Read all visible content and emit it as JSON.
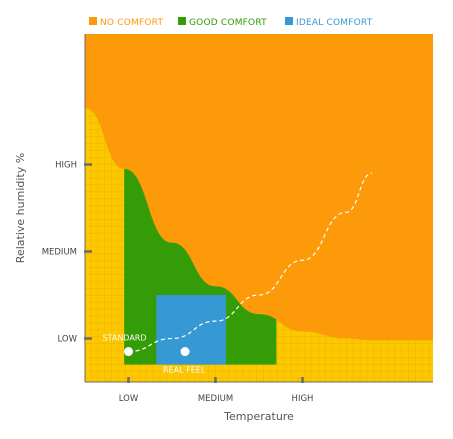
{
  "colors": {
    "no_comfort": "#fd9a0a",
    "good_comfort": "#339c07",
    "ideal_comfort": "#3799d3",
    "background": "#fcc800",
    "grid": "#f3b400",
    "axis": "#6b6b6b",
    "curve": "#ffffff"
  },
  "chart_data": {
    "type": "area",
    "xlabel": "Temperature",
    "ylabel": "Relative humidity %",
    "xlim": [
      0,
      4
    ],
    "ylim": [
      0,
      4
    ],
    "x_ticks": [
      {
        "value": 0.5,
        "label": "LOW"
      },
      {
        "value": 1.5,
        "label": "MEDIUM"
      },
      {
        "value": 2.5,
        "label": "HIGH"
      }
    ],
    "y_ticks": [
      {
        "value": 0.5,
        "label": "LOW"
      },
      {
        "value": 1.5,
        "label": "MEDIUM"
      },
      {
        "value": 2.5,
        "label": "HIGH"
      }
    ],
    "legend": {
      "placement": "top",
      "entries": [
        {
          "label": "NO COMFORT",
          "color_key": "no_comfort"
        },
        {
          "label": "GOOD COMFORT",
          "color_key": "good_comfort"
        },
        {
          "label": "IDEAL COMFORT",
          "color_key": "ideal_comfort"
        }
      ]
    },
    "regions": [
      {
        "name": "NO COMFORT",
        "boundary": [
          [
            0,
            3.15
          ],
          [
            0.45,
            2.45
          ],
          [
            1.0,
            1.6
          ],
          [
            1.5,
            1.1
          ],
          [
            2.0,
            0.78
          ],
          [
            2.5,
            0.58
          ],
          [
            3.0,
            0.5
          ],
          [
            3.3,
            0.48
          ]
        ]
      },
      {
        "name": "GOOD COMFORT",
        "x_range": [
          0.45,
          2.2
        ],
        "y_range": [
          0.2,
          2.45
        ]
      },
      {
        "name": "IDEAL COMFORT",
        "x_range": [
          0.82,
          1.62
        ],
        "y_range": [
          0.2,
          1.0
        ]
      }
    ],
    "points": [
      {
        "label": "STANDARD",
        "x": 0.5,
        "y": 0.35
      },
      {
        "label": "REAL FEEL",
        "x": 1.15,
        "y": 0.35
      }
    ],
    "curve": {
      "style": "dashed",
      "x": [
        0.5,
        1.0,
        1.5,
        2.0,
        2.5,
        3.0,
        3.3
      ],
      "y": [
        0.35,
        0.5,
        0.7,
        1.0,
        1.4,
        1.95,
        2.4
      ]
    }
  }
}
